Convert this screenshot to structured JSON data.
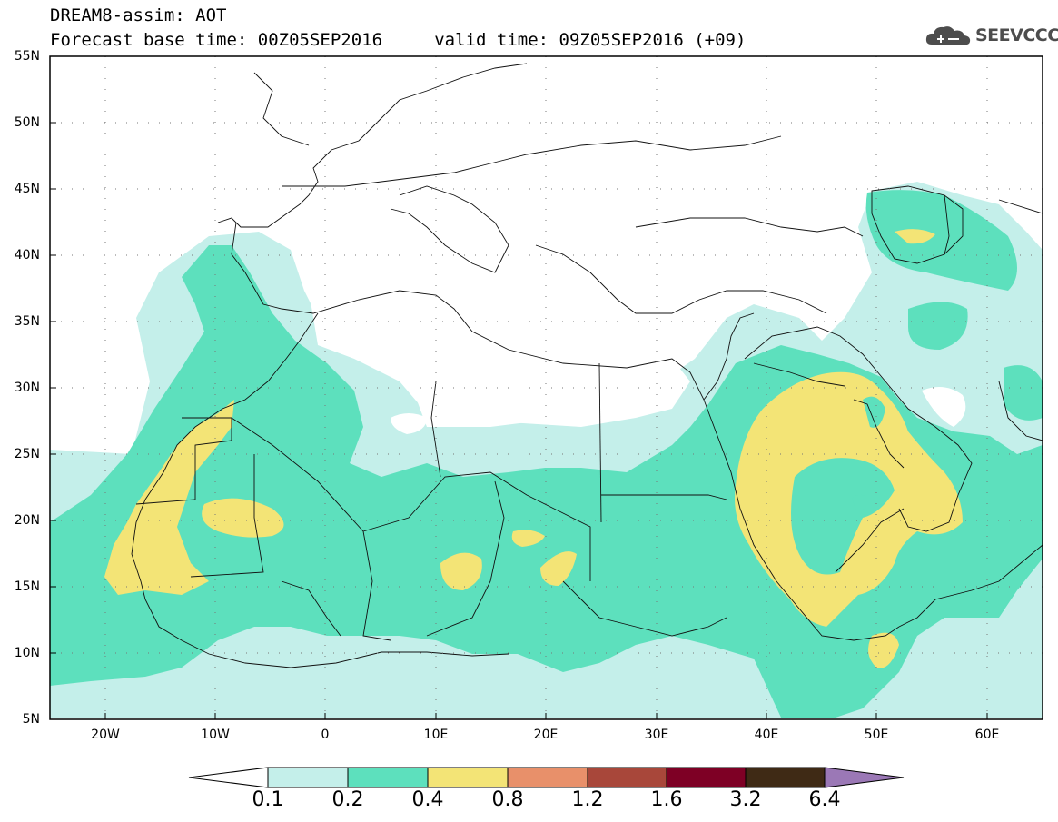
{
  "header": {
    "title_line1": "DREAM8-assim: AOT",
    "title_line2": "Forecast base time: 00Z05SEP2016     valid time: 09Z05SEP2016 (+09)"
  },
  "brand": {
    "text": "SEEVCCC",
    "icon": "cloud-logo-icon"
  },
  "map": {
    "lon_range": [
      -25,
      65
    ],
    "lat_range": [
      5,
      55
    ],
    "grid": "dotted",
    "lat_labels": [
      "55N",
      "50N",
      "45N",
      "40N",
      "35N",
      "30N",
      "25N",
      "20N",
      "15N",
      "10N",
      "5N"
    ],
    "lon_labels": [
      "20W",
      "10W",
      "0",
      "10E",
      "20E",
      "30E",
      "40E",
      "50E",
      "60E"
    ]
  },
  "legend": {
    "thresholds": [
      "0.1",
      "0.2",
      "0.4",
      "0.8",
      "1.2",
      "1.6",
      "3.2",
      "6.4"
    ],
    "colors": [
      "#ffffff",
      "#c4efea",
      "#5de0bd",
      "#f3e476",
      "#e8906a",
      "#a8473a",
      "#7e0025",
      "#3f2a15",
      "#9b78b6"
    ]
  }
}
